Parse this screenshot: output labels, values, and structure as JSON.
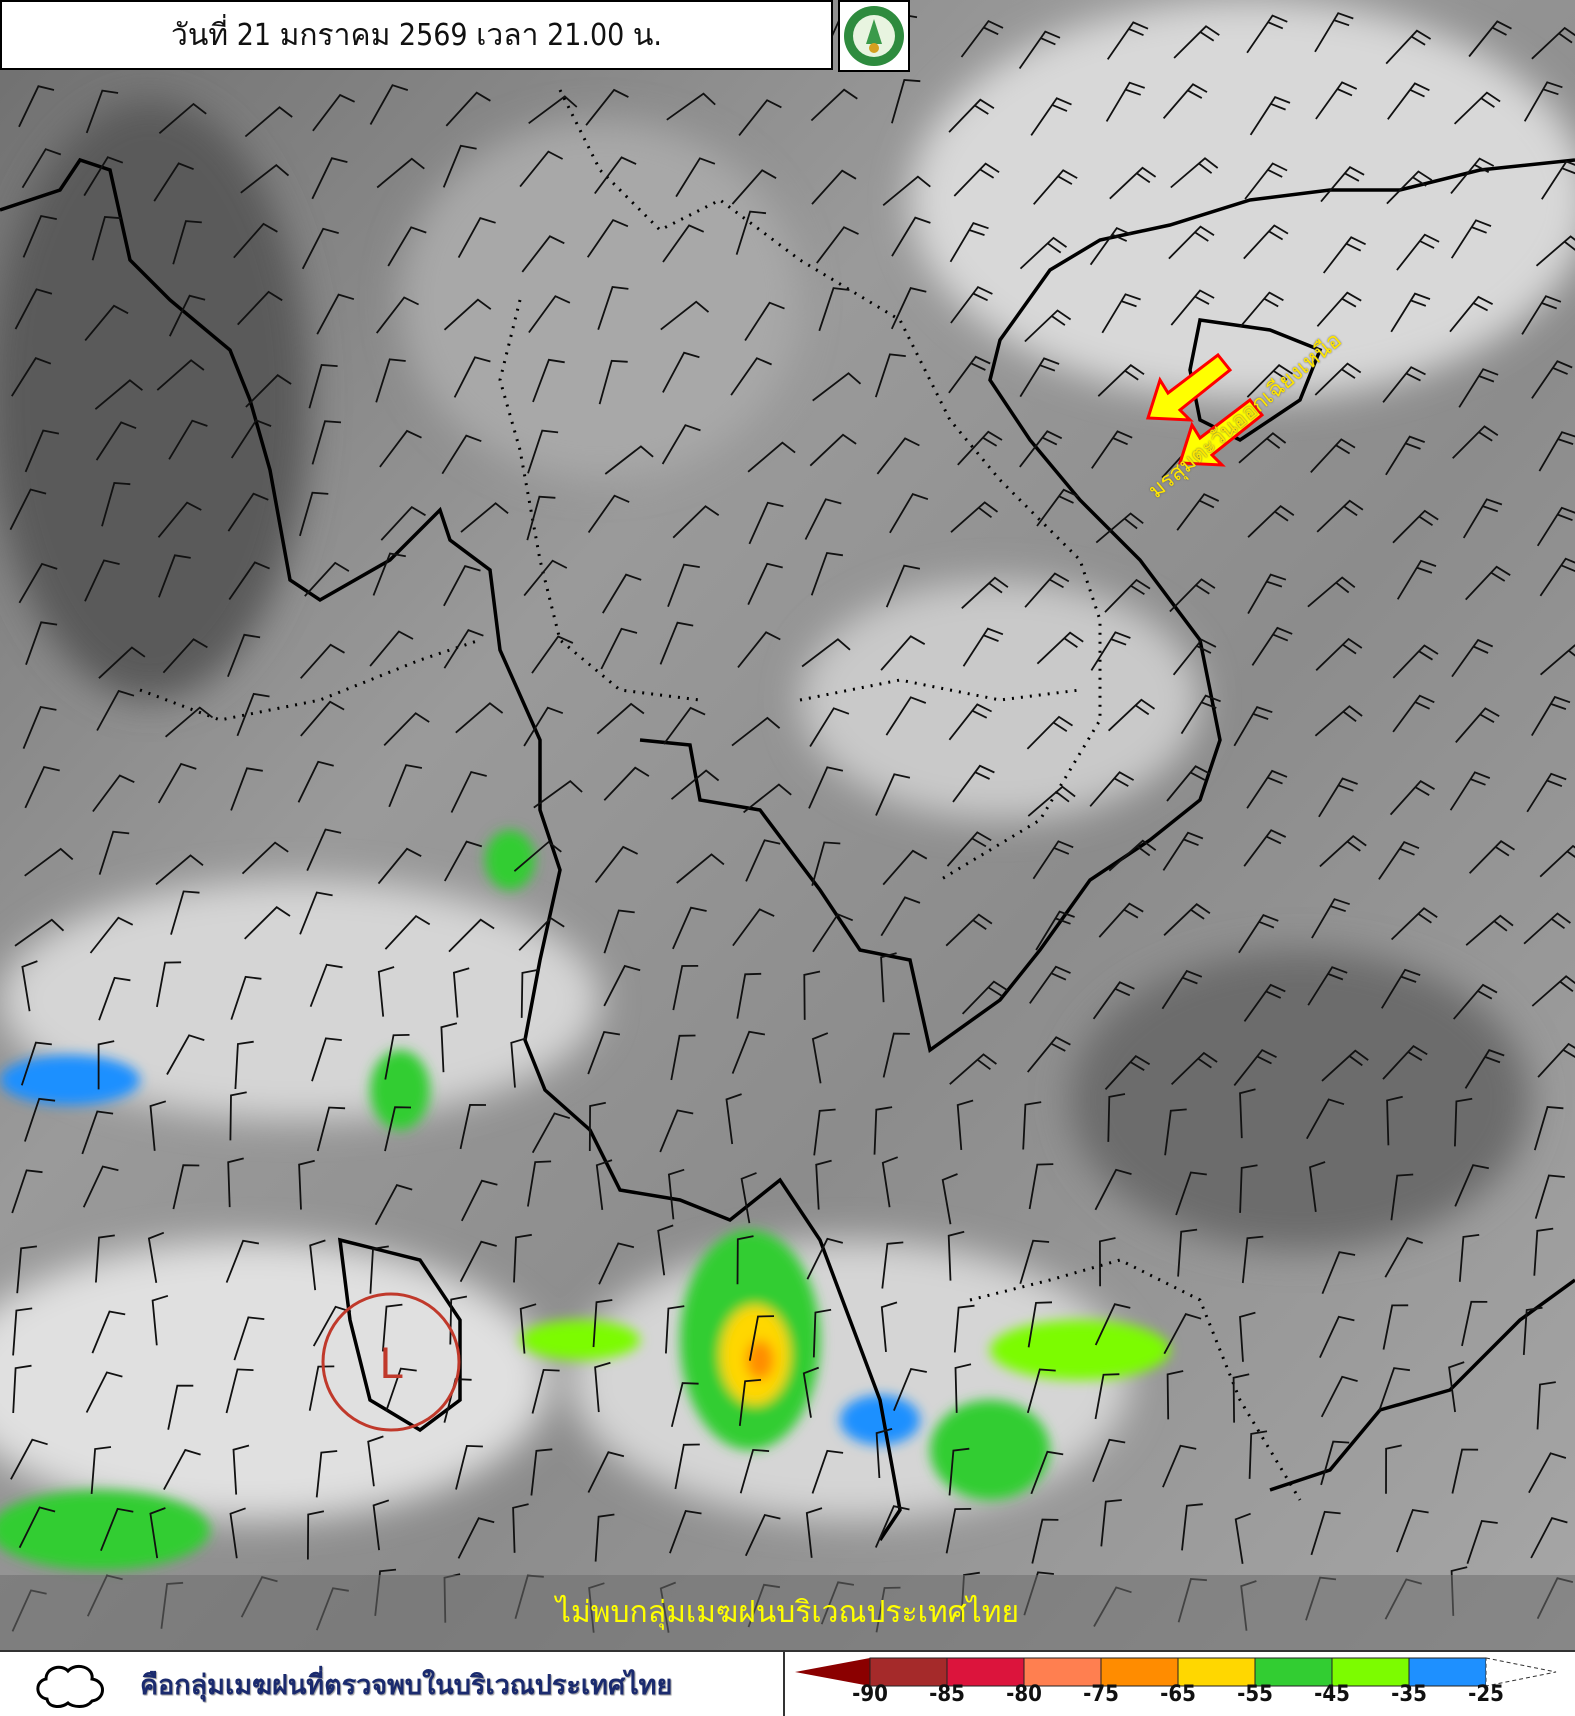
{
  "header": {
    "title": "วันที่ 21 มกราคม 2569 เวลา 21.00 น.",
    "logo": "กรมอุตุนิยมวิทยา METEOROLOGICAL DEPARTMENT"
  },
  "map": {
    "annotation_monsoon": "มรสุมตะวันออกเฉียงเหนือ",
    "low_pressure_label": "L",
    "arrow_color": "#ffff00",
    "arrow_outline": "#ff0000",
    "low_circle_color": "#c0392b"
  },
  "banner": {
    "message": "ไม่พบกลุ่มเมฆฝนบริเวณประเทศไทย"
  },
  "legend": {
    "cloud_description": "คือกลุ่มเมฆฝนที่ตรวจพบในบริเวณประเทศไทย",
    "colors": [
      "#8b0000",
      "#a52a2a",
      "#dc143c",
      "#ff7f50",
      "#ff8c00",
      "#ffd700",
      "#32cd32",
      "#7cfc00",
      "#1e90ff",
      "#ffffff"
    ],
    "ticks": [
      "-90",
      "-85",
      "-80",
      "-75",
      "-65",
      "-55",
      "-45",
      "-35",
      "-25"
    ]
  }
}
